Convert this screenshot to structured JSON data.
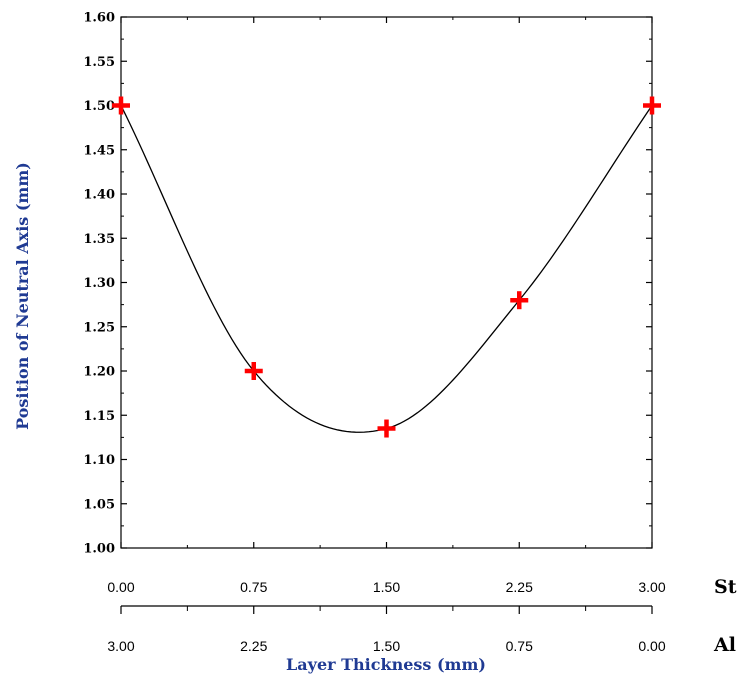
{
  "chart_data": {
    "type": "line",
    "ylabel": "Position of Neutral Axis (mm)",
    "xlabel": "Layer Thickness (mm)",
    "ylim": [
      1.0,
      1.6
    ],
    "yticks": [
      "1.00",
      "1.05",
      "1.10",
      "1.15",
      "1.20",
      "1.25",
      "1.30",
      "1.35",
      "1.40",
      "1.45",
      "1.50",
      "1.55",
      "1.60"
    ],
    "x_axes": [
      {
        "name": "St",
        "ticks": [
          "0.00",
          "0.75",
          "1.50",
          "2.25",
          "3.00"
        ],
        "xlim": [
          0,
          3
        ]
      },
      {
        "name": "Al",
        "ticks": [
          "3.00",
          "2.25",
          "1.50",
          "0.75",
          "0.00"
        ],
        "xlim": [
          3,
          0
        ]
      }
    ],
    "series": [
      {
        "marker": "plus",
        "x": [
          0.0,
          0.75,
          1.5,
          2.25,
          3.0
        ],
        "y": [
          1.5,
          1.2,
          1.135,
          1.28,
          1.5
        ]
      }
    ],
    "grid": false,
    "colors": {
      "axis_title": "#1f3a93",
      "marker": "#ff0000",
      "line": "#000000"
    }
  }
}
